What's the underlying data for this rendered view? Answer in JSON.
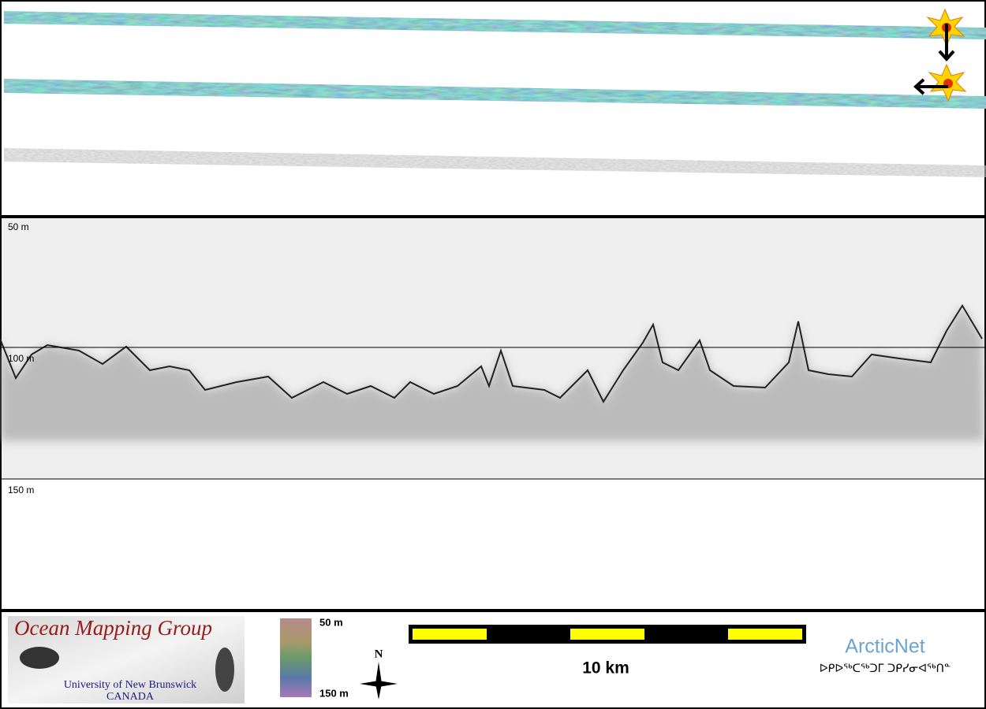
{
  "profile": {
    "depth_labels": [
      "50 m",
      "100 m",
      "150 m"
    ]
  },
  "footer": {
    "logo": {
      "title": "Ocean Mapping Group",
      "university": "University of New Brunswick",
      "country": "CANADA"
    },
    "colorbar": {
      "top_label": "50 m",
      "bottom_label": "150 m"
    },
    "north": "N",
    "scale_bar": "10 km",
    "partner": {
      "name": "ArcticNet",
      "syllabics": "ᐅᑭᐅᖅᑕᖅᑐᒥ ᑐᑭᓯᓂᐊᖅᑎᓐ"
    }
  }
}
